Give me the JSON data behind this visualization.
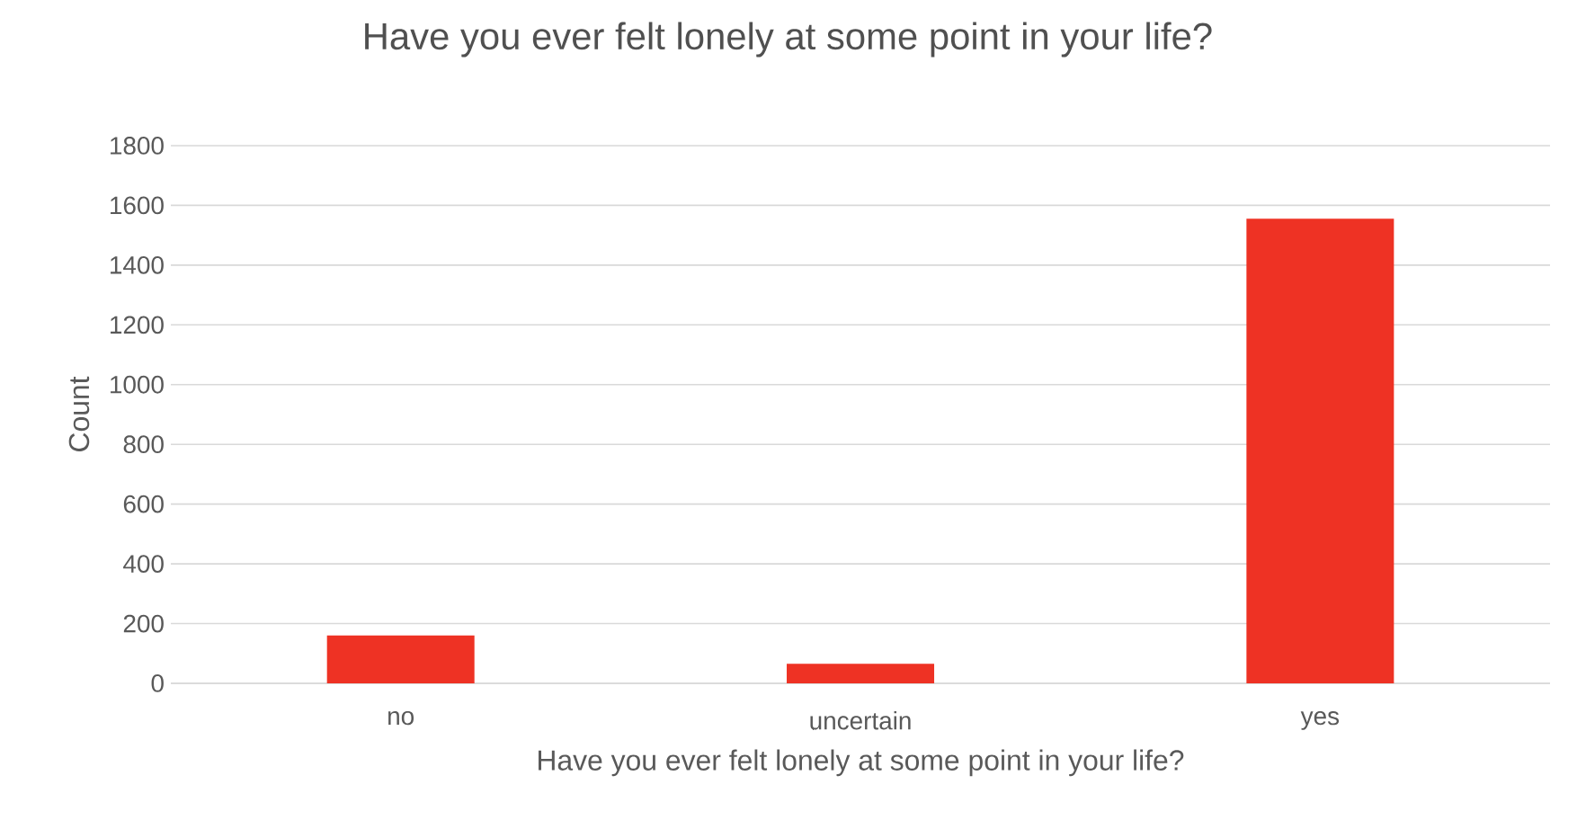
{
  "chart_data": {
    "type": "bar",
    "title": "Have you ever felt lonely at some point in your life?",
    "xlabel": "Have you ever felt lonely at some point in your life?",
    "ylabel": "Count",
    "categories": [
      "no",
      "uncertain",
      "yes"
    ],
    "values": [
      160,
      65,
      1555
    ],
    "color": "#ee3224",
    "ylim": [
      0,
      1800
    ],
    "yticks": [
      0,
      200,
      400,
      600,
      800,
      1000,
      1200,
      1400,
      1600,
      1800
    ],
    "grid": "y"
  }
}
